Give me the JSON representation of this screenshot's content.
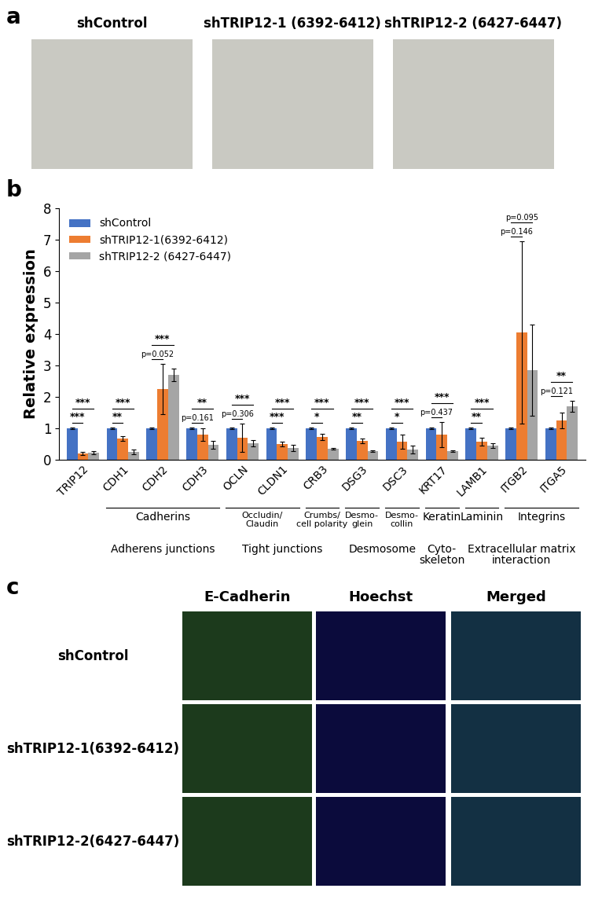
{
  "panel_a": {
    "letter": "a",
    "images": [
      "shControl",
      "shTRIP12-1 (6392-6412)",
      "shTRIP12-2 (6427-6447)"
    ]
  },
  "chart_data": {
    "letter": "b",
    "type": "bar",
    "y_label": "Relative expression",
    "categories": [
      "TRIP12",
      "CDH1",
      "CDH2",
      "CDH3",
      "OCLN",
      "CLDN1",
      "CRB3",
      "DSG3",
      "DSC3",
      "KRT17",
      "LAMB1",
      "ITGB2",
      "ITGA5"
    ],
    "series": [
      {
        "name": "shControl",
        "color": "#4472c4",
        "values": [
          1,
          1,
          1,
          1,
          1,
          1,
          1,
          1,
          1,
          1,
          1,
          1,
          1
        ],
        "errors": [
          0.02,
          0.02,
          0.02,
          0.02,
          0.02,
          0.02,
          0.02,
          0.02,
          0.02,
          0.02,
          0.02,
          0.02,
          0.02
        ]
      },
      {
        "name": "shTRIP12-1(6392-6412)",
        "color": "#ed7d31",
        "values": [
          0.2,
          0.68,
          2.25,
          0.8,
          0.7,
          0.5,
          0.72,
          0.6,
          0.57,
          0.8,
          0.57,
          4.05,
          1.25
        ],
        "errors": [
          0.05,
          0.08,
          0.8,
          0.2,
          0.45,
          0.07,
          0.1,
          0.08,
          0.22,
          0.4,
          0.12,
          2.9,
          0.25
        ],
        "significance": [
          "***",
          "**",
          "p=0.052",
          "p=0.161",
          "p=0.306",
          "***",
          "*",
          "**",
          "*",
          "p=0.437",
          "**",
          "p=0.146",
          "p=0.121"
        ]
      },
      {
        "name": "shTRIP12-2 (6427-6447)",
        "color": "#a5a5a5",
        "values": [
          0.22,
          0.25,
          2.7,
          0.48,
          0.52,
          0.37,
          0.35,
          0.27,
          0.33,
          0.27,
          0.45,
          2.85,
          1.7
        ],
        "errors": [
          0.05,
          0.08,
          0.2,
          0.12,
          0.1,
          0.1,
          0.03,
          0.03,
          0.12,
          0.02,
          0.08,
          1.45,
          0.17
        ],
        "significance": [
          "***",
          "***",
          "***",
          "**",
          "***",
          "***",
          "***",
          "***",
          "***",
          "***",
          "***",
          "p=0.095",
          "**"
        ]
      }
    ],
    "ylim": [
      0,
      8
    ],
    "yticks": [
      0,
      1,
      2,
      3,
      4,
      5,
      6,
      7,
      8
    ],
    "legend": "upper left",
    "groups": [
      {
        "label": "Cadherins",
        "from": "CDH1",
        "to": "CDH3"
      },
      {
        "label": "Occludin/\nClaudin",
        "from": "OCLN",
        "to": "CLDN1"
      },
      {
        "label": "Crumbs/\ncell polarity",
        "from": "CRB3",
        "to": "CRB3"
      },
      {
        "label": "Desmo-\nglein",
        "from": "DSG3",
        "to": "DSG3"
      },
      {
        "label": "Desmo-\ncollin",
        "from": "DSC3",
        "to": "DSC3"
      },
      {
        "label": "Keratin",
        "from": "KRT17",
        "to": "KRT17"
      },
      {
        "label": "Laminin",
        "from": "LAMB1",
        "to": "LAMB1"
      },
      {
        "label": "Integrins",
        "from": "ITGB2",
        "to": "ITGA5"
      }
    ],
    "supergroups": [
      {
        "label": "Adherens junctions",
        "from": "CDH1",
        "to": "CDH3"
      },
      {
        "label": "Tight junctions",
        "from": "OCLN",
        "to": "CRB3"
      },
      {
        "label": "Desmosome",
        "from": "DSG3",
        "to": "DSC3"
      },
      {
        "label": "Cyto-\nskeleton",
        "from": "KRT17",
        "to": "KRT17"
      },
      {
        "label": "Extracellular matrix\ninteraction",
        "from": "LAMB1",
        "to": "ITGA5"
      }
    ]
  },
  "panel_c": {
    "letter": "c",
    "columns": [
      "E-Cadherin",
      "Hoechst",
      "Merged"
    ],
    "rows": [
      "shControl",
      "shTRIP12-1(6392-6412)",
      "shTRIP12-2(6427-6447)"
    ]
  }
}
